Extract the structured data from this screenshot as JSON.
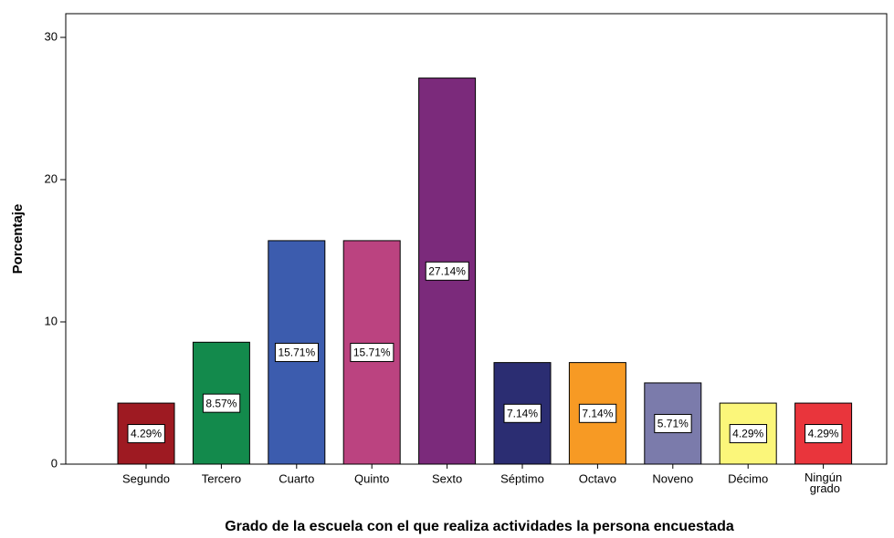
{
  "chart_data": {
    "type": "bar",
    "x_label": "Grado de la escuela con el que realiza actividades la persona encuestada",
    "y_label": "Porcentaje",
    "categories": [
      "Segundo",
      "Tercero",
      "Cuarto",
      "Quinto",
      "Sexto",
      "Séptimo",
      "Octavo",
      "Noveno",
      "Décimo",
      "Ningún grado"
    ],
    "values": [
      4.29,
      8.57,
      15.71,
      15.71,
      27.14,
      7.14,
      7.14,
      5.71,
      4.29,
      4.29
    ],
    "value_labels": [
      "4.29%",
      "8.57%",
      "15.71%",
      "15.71%",
      "27.14%",
      "7.14%",
      "7.14%",
      "5.71%",
      "4.29%",
      "4.29%"
    ],
    "colors": [
      "#9e1a22",
      "#138a4c",
      "#3c5cae",
      "#bb4380",
      "#7b2a7b",
      "#2b2d72",
      "#f79a24",
      "#7b7bab",
      "#fbf67a",
      "#e9353c"
    ],
    "ylim": [
      0,
      30
    ],
    "yticks": [
      0,
      10,
      20,
      30
    ],
    "grid": false
  }
}
